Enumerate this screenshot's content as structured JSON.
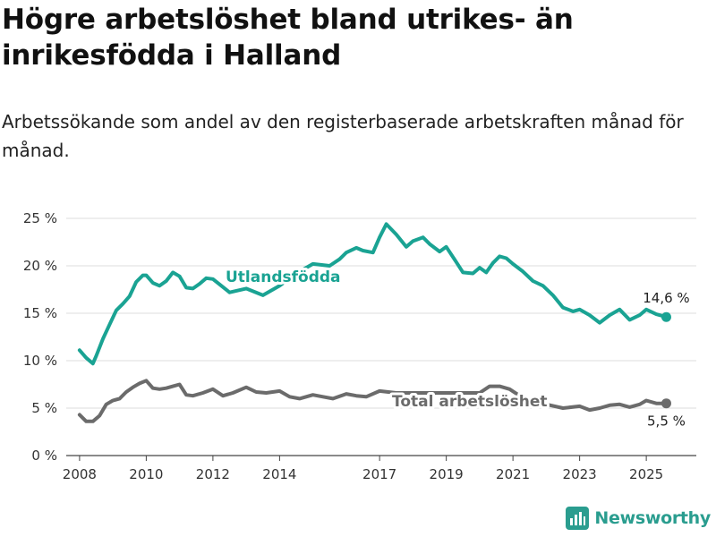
{
  "title": "Högre arbetslöshet bland utrikes- än inrikesfödda i Halland",
  "subtitle": "Arbetssökande som andel av den registerbaserade arbetskraften månad för månad.",
  "logo_text": "Newsworthy",
  "colors": {
    "utlandsfodda": "#1aa393",
    "total": "#6b6b6b",
    "grid": "#dddddd",
    "axis": "#444444"
  },
  "chart_data": {
    "type": "line",
    "title": "Högre arbetslöshet bland utrikes- än inrikesfödda i Halland",
    "subtitle": "Arbetssökande som andel av den registerbaserade arbetskraften månad för månad.",
    "xlabel": "",
    "ylabel": "",
    "xlim": [
      2007.6,
      2026.5
    ],
    "ylim": [
      0,
      25
    ],
    "y_ticks": [
      0,
      5,
      10,
      15,
      20,
      25
    ],
    "y_tick_labels": [
      "0 %",
      "5 %",
      "10 %",
      "15 %",
      "20 %",
      "25 %"
    ],
    "x_ticks": [
      2008,
      2010,
      2012,
      2014,
      2017,
      2019,
      2021,
      2023,
      2025
    ],
    "x_tick_labels": [
      "2008",
      "2010",
      "2012",
      "2014",
      "2017",
      "2019",
      "2021",
      "2023",
      "2025"
    ],
    "grid": true,
    "series": [
      {
        "name": "Utlandsfödda",
        "color": "#1aa393",
        "end_label": "14,6 %",
        "x": [
          2008.0,
          2008.2,
          2008.4,
          2008.5,
          2008.7,
          2008.9,
          2009.1,
          2009.3,
          2009.5,
          2009.7,
          2009.9,
          2010.0,
          2010.2,
          2010.4,
          2010.6,
          2010.8,
          2011.0,
          2011.2,
          2011.4,
          2011.6,
          2011.8,
          2012.0,
          2012.5,
          2013.0,
          2013.5,
          2014.0,
          2014.5,
          2015.0,
          2015.5,
          2015.8,
          2016.0,
          2016.3,
          2016.5,
          2016.8,
          2017.0,
          2017.2,
          2017.5,
          2017.8,
          2018.0,
          2018.3,
          2018.5,
          2018.8,
          2019.0,
          2019.3,
          2019.5,
          2019.8,
          2020.0,
          2020.2,
          2020.4,
          2020.6,
          2020.8,
          2021.0,
          2021.3,
          2021.6,
          2021.9,
          2022.2,
          2022.5,
          2022.8,
          2023.0,
          2023.3,
          2023.6,
          2023.9,
          2024.2,
          2024.5,
          2024.8,
          2025.0,
          2025.3,
          2025.6
        ],
        "y": [
          11.1,
          10.3,
          9.7,
          10.5,
          12.3,
          13.8,
          15.3,
          16.0,
          16.8,
          18.3,
          19.0,
          19.0,
          18.2,
          17.9,
          18.4,
          19.3,
          18.9,
          17.7,
          17.6,
          18.1,
          18.7,
          18.6,
          17.2,
          17.6,
          16.9,
          17.9,
          19.2,
          20.2,
          20.0,
          20.7,
          21.4,
          21.9,
          21.6,
          21.4,
          23.0,
          24.4,
          23.3,
          22.0,
          22.6,
          23.0,
          22.3,
          21.5,
          22.0,
          20.4,
          19.3,
          19.2,
          19.8,
          19.3,
          20.3,
          21.0,
          20.8,
          20.2,
          19.4,
          18.4,
          17.9,
          16.9,
          15.6,
          15.2,
          15.4,
          14.8,
          14.0,
          14.8,
          15.4,
          14.3,
          14.8,
          15.4,
          14.9,
          14.6
        ]
      },
      {
        "name": "Total arbetslöshet",
        "color": "#6b6b6b",
        "end_label": "5,5 %",
        "x": [
          2008.0,
          2008.2,
          2008.4,
          2008.6,
          2008.8,
          2009.0,
          2009.2,
          2009.4,
          2009.6,
          2009.8,
          2010.0,
          2010.2,
          2010.4,
          2010.6,
          2010.8,
          2011.0,
          2011.2,
          2011.4,
          2011.7,
          2012.0,
          2012.3,
          2012.6,
          2013.0,
          2013.3,
          2013.6,
          2014.0,
          2014.3,
          2014.6,
          2015.0,
          2015.3,
          2015.6,
          2016.0,
          2016.3,
          2016.6,
          2017.0,
          2017.5,
          2018.0,
          2018.5,
          2019.0,
          2019.5,
          2020.0,
          2020.3,
          2020.6,
          2020.9,
          2021.2,
          2021.5,
          2022.0,
          2022.5,
          2023.0,
          2023.3,
          2023.6,
          2023.9,
          2024.2,
          2024.5,
          2024.8,
          2025.0,
          2025.3,
          2025.6
        ],
        "y": [
          4.3,
          3.6,
          3.6,
          4.2,
          5.4,
          5.8,
          6.0,
          6.7,
          7.2,
          7.6,
          7.9,
          7.1,
          7.0,
          7.1,
          7.3,
          7.5,
          6.4,
          6.3,
          6.6,
          7.0,
          6.3,
          6.6,
          7.2,
          6.7,
          6.6,
          6.8,
          6.2,
          6.0,
          6.4,
          6.2,
          6.0,
          6.5,
          6.3,
          6.2,
          6.8,
          6.6,
          6.6,
          6.6,
          6.6,
          6.6,
          6.6,
          7.3,
          7.3,
          7.0,
          6.3,
          5.9,
          5.4,
          5.0,
          5.2,
          4.8,
          5.0,
          5.3,
          5.4,
          5.1,
          5.4,
          5.8,
          5.5,
          5.5
        ]
      }
    ],
    "annotations": [
      {
        "text": "Utlandsfödda",
        "series": 0
      },
      {
        "text": "Total arbetslöshet",
        "series": 1
      }
    ]
  }
}
